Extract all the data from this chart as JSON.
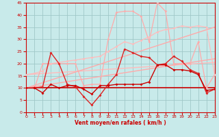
{
  "xlabel": "Vent moyen/en rafales ( km/h )",
  "xlim": [
    0,
    23
  ],
  "ylim": [
    0,
    45
  ],
  "yticks": [
    0,
    5,
    10,
    15,
    20,
    25,
    30,
    35,
    40,
    45
  ],
  "xticks": [
    0,
    1,
    2,
    3,
    4,
    5,
    6,
    7,
    8,
    9,
    10,
    11,
    12,
    13,
    14,
    15,
    16,
    17,
    18,
    19,
    20,
    21,
    22,
    23
  ],
  "bg_color": "#c8eaea",
  "grid_color": "#a0c8c8",
  "series": [
    {
      "x": [
        0,
        1,
        2,
        3,
        4,
        5,
        6,
        7,
        8,
        9,
        10,
        11,
        12,
        13,
        14,
        15,
        16,
        17,
        18,
        19,
        20,
        21,
        22,
        23
      ],
      "y": [
        10.0,
        10.0,
        20.0,
        20.0,
        20.0,
        20.0,
        20.0,
        11.0,
        11.5,
        11.5,
        30.0,
        41.0,
        41.5,
        41.5,
        39.5,
        29.0,
        45.0,
        41.5,
        20.0,
        20.0,
        20.0,
        29.0,
        10.0,
        15.5
      ],
      "color": "#ffaaaa",
      "lw": 0.9,
      "marker": "D",
      "ms": 1.8
    },
    {
      "x": [
        0,
        1,
        2,
        3,
        4,
        5,
        6,
        7,
        8,
        9,
        10,
        11,
        12,
        13,
        14,
        15,
        16,
        17,
        18,
        19,
        20,
        21,
        22,
        23
      ],
      "y": [
        15.5,
        16.0,
        17.0,
        20.0,
        20.5,
        21.0,
        21.5,
        22.0,
        22.5,
        23.0,
        25.0,
        27.0,
        29.0,
        28.0,
        29.5,
        31.0,
        33.0,
        34.0,
        34.5,
        35.5,
        35.0,
        35.5,
        35.0,
        15.5
      ],
      "color": "#ffbbbb",
      "lw": 0.9,
      "marker": "D",
      "ms": 1.8
    },
    {
      "x": [
        0,
        1,
        2,
        3,
        4,
        5,
        6,
        7,
        8,
        9,
        10,
        11,
        12,
        13,
        14,
        15,
        16,
        17,
        18,
        19,
        20,
        21,
        22,
        23
      ],
      "y": [
        10.0,
        10.0,
        10.5,
        24.5,
        20.0,
        11.5,
        10.5,
        6.5,
        3.0,
        7.0,
        11.5,
        15.5,
        26.0,
        24.5,
        23.0,
        22.5,
        19.5,
        20.0,
        23.0,
        21.0,
        17.5,
        16.0,
        8.0,
        9.5
      ],
      "color": "#dd2222",
      "lw": 1.0,
      "marker": "D",
      "ms": 2.0
    },
    {
      "x": [
        0,
        1,
        2,
        3,
        4,
        5,
        6,
        7,
        8,
        9,
        10,
        11,
        12,
        13,
        14,
        15,
        16,
        17,
        18,
        19,
        20,
        21,
        22,
        23
      ],
      "y": [
        10.0,
        10.0,
        8.0,
        11.5,
        10.0,
        11.0,
        11.0,
        9.5,
        7.5,
        11.0,
        11.0,
        11.5,
        11.5,
        11.5,
        11.5,
        12.5,
        19.5,
        19.5,
        17.5,
        17.5,
        17.0,
        15.5,
        9.0,
        9.5
      ],
      "color": "#cc0000",
      "lw": 1.0,
      "marker": "D",
      "ms": 2.0
    },
    {
      "x": [
        0,
        23
      ],
      "y": [
        10.0,
        10.0
      ],
      "color": "#cc0000",
      "lw": 1.2,
      "marker": null,
      "ms": 0
    },
    {
      "x": [
        0,
        23
      ],
      "y": [
        15.5,
        20.5
      ],
      "color": "#ffbbbb",
      "lw": 1.0,
      "marker": null,
      "ms": 0
    },
    {
      "x": [
        0,
        23
      ],
      "y": [
        10.0,
        22.0
      ],
      "color": "#ffaaaa",
      "lw": 1.0,
      "marker": null,
      "ms": 0
    },
    {
      "x": [
        0,
        23
      ],
      "y": [
        10.0,
        35.0
      ],
      "color": "#ffaaaa",
      "lw": 1.0,
      "marker": null,
      "ms": 0
    }
  ]
}
